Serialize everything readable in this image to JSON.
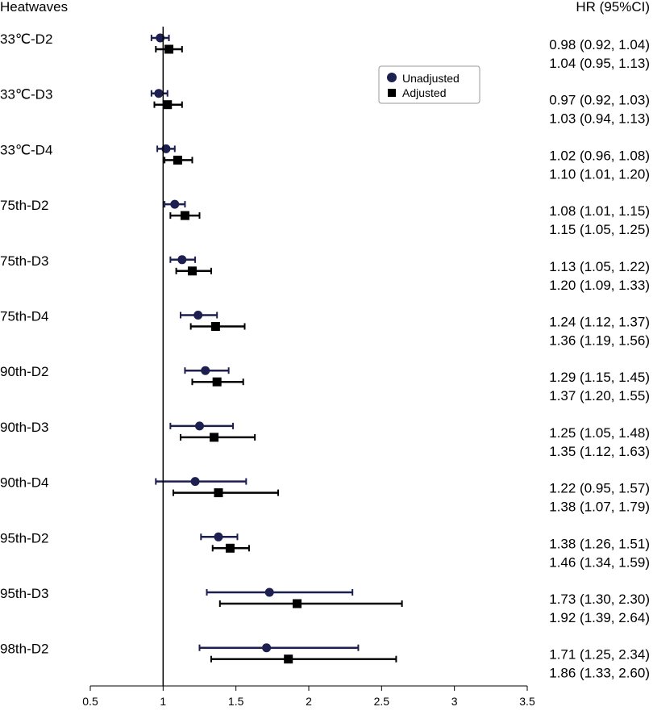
{
  "chart_data": {
    "type": "forest",
    "header_left": "Heatwaves",
    "header_right": "HR (95%CI)",
    "reference_line": 1,
    "xlim": [
      0.5,
      3.5
    ],
    "xticks": [
      "0.5",
      "1",
      "1.5",
      "2",
      "2.5",
      "3",
      "3.5"
    ],
    "legend": {
      "position": "top-center",
      "entries": [
        {
          "name": "Unadjusted",
          "marker": "circle",
          "color": "#1c1f4f"
        },
        {
          "name": "Adjusted",
          "marker": "square",
          "color": "#000000"
        }
      ]
    },
    "rows": [
      {
        "label": "33℃-D2",
        "unadj": {
          "hr": 0.98,
          "lo": 0.92,
          "hi": 1.04,
          "text": "0.98 (0.92, 1.04)"
        },
        "adj": {
          "hr": 1.04,
          "lo": 0.95,
          "hi": 1.13,
          "text": "1.04 (0.95, 1.13)"
        }
      },
      {
        "label": "33℃-D3",
        "unadj": {
          "hr": 0.97,
          "lo": 0.92,
          "hi": 1.03,
          "text": "0.97 (0.92, 1.03)"
        },
        "adj": {
          "hr": 1.03,
          "lo": 0.94,
          "hi": 1.13,
          "text": "1.03 (0.94, 1.13)"
        }
      },
      {
        "label": "33℃-D4",
        "unadj": {
          "hr": 1.02,
          "lo": 0.96,
          "hi": 1.08,
          "text": "1.02 (0.96, 1.08)"
        },
        "adj": {
          "hr": 1.1,
          "lo": 1.01,
          "hi": 1.2,
          "text": "1.10 (1.01, 1.20)"
        }
      },
      {
        "label": "75th-D2",
        "unadj": {
          "hr": 1.08,
          "lo": 1.01,
          "hi": 1.15,
          "text": "1.08 (1.01, 1.15)"
        },
        "adj": {
          "hr": 1.15,
          "lo": 1.05,
          "hi": 1.25,
          "text": "1.15 (1.05, 1.25)"
        }
      },
      {
        "label": "75th-D3",
        "unadj": {
          "hr": 1.13,
          "lo": 1.05,
          "hi": 1.22,
          "text": "1.13 (1.05, 1.22)"
        },
        "adj": {
          "hr": 1.2,
          "lo": 1.09,
          "hi": 1.33,
          "text": "1.20 (1.09, 1.33)"
        }
      },
      {
        "label": "75th-D4",
        "unadj": {
          "hr": 1.24,
          "lo": 1.12,
          "hi": 1.37,
          "text": "1.24 (1.12, 1.37)"
        },
        "adj": {
          "hr": 1.36,
          "lo": 1.19,
          "hi": 1.56,
          "text": "1.36 (1.19, 1.56)"
        }
      },
      {
        "label": "90th-D2",
        "unadj": {
          "hr": 1.29,
          "lo": 1.15,
          "hi": 1.45,
          "text": "1.29 (1.15, 1.45)"
        },
        "adj": {
          "hr": 1.37,
          "lo": 1.2,
          "hi": 1.55,
          "text": "1.37 (1.20, 1.55)"
        }
      },
      {
        "label": "90th-D3",
        "unadj": {
          "hr": 1.25,
          "lo": 1.05,
          "hi": 1.48,
          "text": "1.25 (1.05, 1.48)"
        },
        "adj": {
          "hr": 1.35,
          "lo": 1.12,
          "hi": 1.63,
          "text": "1.35 (1.12, 1.63)"
        }
      },
      {
        "label": "90th-D4",
        "unadj": {
          "hr": 1.22,
          "lo": 0.95,
          "hi": 1.57,
          "text": "1.22 (0.95, 1.57)"
        },
        "adj": {
          "hr": 1.38,
          "lo": 1.07,
          "hi": 1.79,
          "text": "1.38 (1.07, 1.79)"
        }
      },
      {
        "label": "95th-D2",
        "unadj": {
          "hr": 1.38,
          "lo": 1.26,
          "hi": 1.51,
          "text": "1.38 (1.26, 1.51)"
        },
        "adj": {
          "hr": 1.46,
          "lo": 1.34,
          "hi": 1.59,
          "text": "1.46 (1.34, 1.59)"
        }
      },
      {
        "label": "95th-D3",
        "unadj": {
          "hr": 1.73,
          "lo": 1.3,
          "hi": 2.3,
          "text": "1.73 (1.30, 2.30)"
        },
        "adj": {
          "hr": 1.92,
          "lo": 1.39,
          "hi": 2.64,
          "text": "1.92 (1.39, 2.64)"
        }
      },
      {
        "label": "98th-D2",
        "unadj": {
          "hr": 1.71,
          "lo": 1.25,
          "hi": 2.34,
          "text": "1.71 (1.25, 2.34)"
        },
        "adj": {
          "hr": 1.86,
          "lo": 1.33,
          "hi": 2.6,
          "text": "1.86 (1.33, 2.60)"
        }
      }
    ]
  }
}
